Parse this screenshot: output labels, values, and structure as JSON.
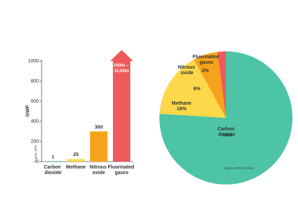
{
  "chart_data": [
    {
      "type": "bar",
      "ylabel": "GWP",
      "source": "Source: EPA",
      "categories": [
        "Carbon dioxide",
        "Methane",
        "Nitrous oxide",
        "Fluorinated gases"
      ],
      "values": [
        1,
        25,
        300,
        1000
      ],
      "value_labels": [
        "1",
        "25",
        "300",
        "1000s – 10,000s"
      ],
      "colors": [
        "#4dc4a5",
        "#fcd84a",
        "#f7a21b",
        "#ef5b5b"
      ],
      "ylim": [
        0,
        1000
      ],
      "yticks": [
        0,
        200,
        400,
        600,
        800,
        1000
      ],
      "grid": false
    },
    {
      "type": "pie",
      "source": "Source: IPCC (2014)",
      "categories": [
        "Carbon dioxide",
        "Methane",
        "Nitrous oxide",
        "Fluorinated gases"
      ],
      "values": [
        76,
        16,
        6,
        2
      ],
      "value_labels": [
        "76%",
        "16%",
        "6%",
        "2%"
      ],
      "colors": [
        "#4dc4a5",
        "#fcd84a",
        "#f7a21b",
        "#ef5b5b"
      ]
    }
  ]
}
